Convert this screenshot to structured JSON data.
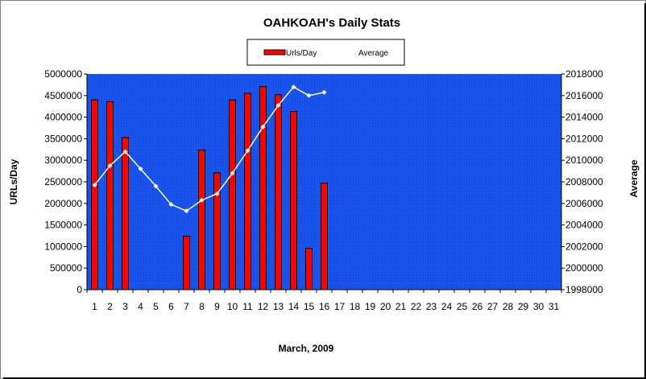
{
  "chart_data": {
    "type": "bar",
    "title": "OAHKOAH's Daily Stats",
    "xlabel": "March, 2009",
    "ylabel": "URLs/Day",
    "y2label": "Average",
    "categories": [
      "1",
      "2",
      "3",
      "4",
      "5",
      "6",
      "7",
      "8",
      "9",
      "10",
      "11",
      "12",
      "13",
      "14",
      "15",
      "16",
      "17",
      "18",
      "19",
      "20",
      "21",
      "22",
      "23",
      "24",
      "25",
      "26",
      "27",
      "28",
      "29",
      "30",
      "31"
    ],
    "ylim": [
      0,
      5000000
    ],
    "y2lim": [
      1998000,
      2018000
    ],
    "yticks": [
      "0",
      "500000",
      "1000000",
      "1500000",
      "2000000",
      "2500000",
      "3000000",
      "3500000",
      "4000000",
      "4500000",
      "5000000"
    ],
    "y2ticks": [
      "1998000",
      "2000000",
      "2002000",
      "2004000",
      "2006000",
      "2008000",
      "2010000",
      "2012000",
      "2014000",
      "2016000",
      "2018000"
    ],
    "legend_position": "top",
    "background_color": "#1a55f0",
    "series": [
      {
        "name": "Urls/Day",
        "type": "bar",
        "axis": "left",
        "color": "#ff0000",
        "values": [
          4400000,
          4360000,
          3530000,
          null,
          null,
          null,
          1240000,
          3240000,
          2710000,
          4400000,
          4550000,
          4710000,
          4520000,
          4130000,
          960000,
          2470000,
          null,
          null,
          null,
          null,
          null,
          null,
          null,
          null,
          null,
          null,
          null,
          null,
          null,
          null,
          null
        ]
      },
      {
        "name": "Average",
        "type": "line",
        "axis": "right",
        "color": "#ffffff",
        "values": [
          2007700,
          2009500,
          2010800,
          2009200,
          2007600,
          2005900,
          2005300,
          2006300,
          2006900,
          2008800,
          2010900,
          2013100,
          2015100,
          2016800,
          2016000,
          2016300,
          null,
          null,
          null,
          null,
          null,
          null,
          null,
          null,
          null,
          null,
          null,
          null,
          null,
          null,
          null
        ]
      }
    ]
  }
}
